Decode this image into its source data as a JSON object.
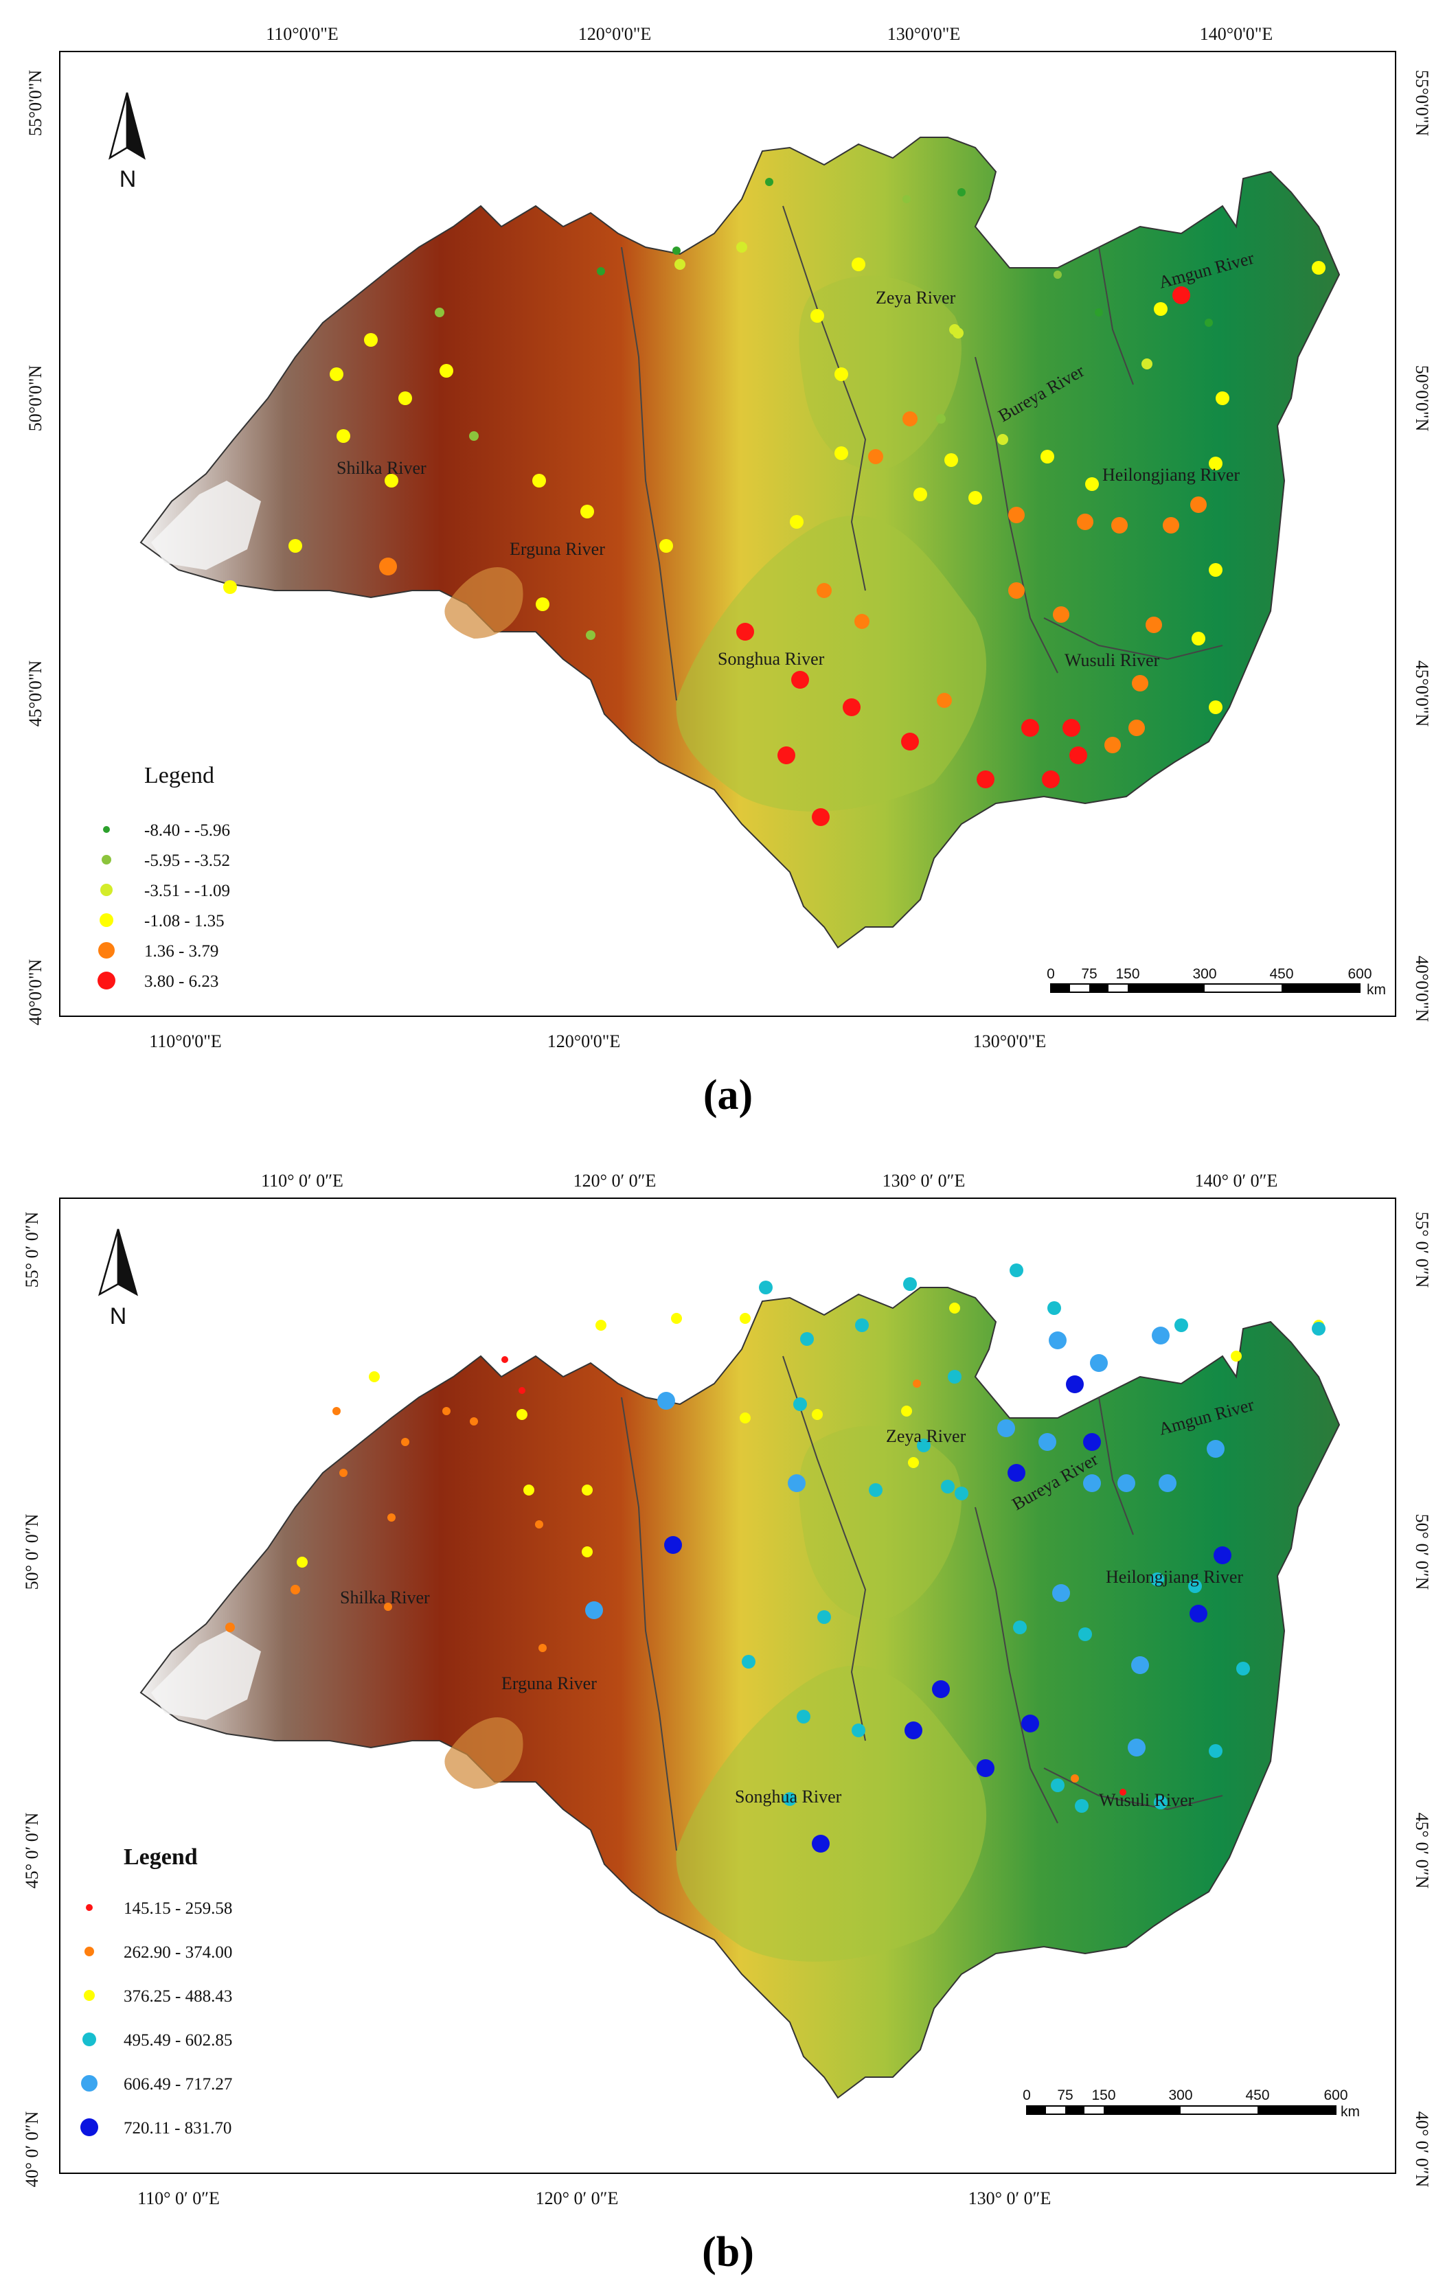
{
  "panels": [
    {
      "id": "a",
      "caption": "(a)",
      "top_ticks": [
        "110°0'0\"E",
        "120°0'0\"E",
        "130°0'0\"E",
        "140°0'0\"E"
      ],
      "bottom_ticks": [
        "110°0'0\"E",
        "120°0'0\"E",
        "130°0'0\"E"
      ],
      "left_ticks": [
        "55°0'0\"N",
        "50°0'0\"N",
        "45°0'0\"N",
        "40°0'0\"N"
      ],
      "right_ticks": [
        "55°0'0\"N",
        "50°0'0\"N",
        "45°0'0\"N",
        "40°0'0\"N"
      ],
      "north_label": "N",
      "rivers": [
        "Zeya River",
        "Amgun River",
        "Bureya River",
        "Shilka River",
        "Heilongjiang River",
        "Erguna River",
        "Songhua River",
        "Wusuli River"
      ],
      "legend": {
        "title": "Legend",
        "entries": [
          "-8.40 - -5.96",
          "-5.95 - -3.52",
          "-3.51 - -1.09",
          "-1.08 - 1.35",
          "1.36 - 3.79",
          "3.80 - 6.23"
        ],
        "colors": [
          "#2ca02c",
          "#8cc43c",
          "#d4ec2a",
          "#ffff00",
          "#ff7f0e",
          "#ff1414"
        ]
      },
      "scale": {
        "labels": [
          "0",
          "75",
          "150",
          "300",
          "450",
          "600"
        ],
        "unit": "km"
      }
    },
    {
      "id": "b",
      "caption": "(b)",
      "top_ticks": [
        "110° 0′ 0″E",
        "120° 0′ 0″E",
        "130° 0′ 0″E",
        "140° 0′ 0″E"
      ],
      "bottom_ticks": [
        "110° 0′ 0″E",
        "120° 0′ 0″E",
        "130° 0′ 0″E"
      ],
      "left_ticks": [
        "55° 0′ 0″N",
        "50° 0′ 0″N",
        "45° 0′ 0″N",
        "40° 0′ 0″N"
      ],
      "right_ticks": [
        "55° 0′ 0″N",
        "50° 0′ 0″N",
        "45° 0′ 0″N",
        "40° 0′ 0″N"
      ],
      "north_label": "N",
      "rivers": [
        "Zeya River",
        "Amgun River",
        "Bureya River",
        "Shilka River",
        "Heilongjiang River",
        "Erguna River",
        "Songhua River",
        "Wusuli River"
      ],
      "legend": {
        "title": "Legend",
        "entries": [
          "145.15 - 259.58",
          "262.90 - 374.00",
          "376.25 - 488.43",
          "495.49 - 602.85",
          "606.49 - 717.27",
          "720.11 - 831.70"
        ],
        "colors": [
          "#ff1414",
          "#ff7f0e",
          "#ffff00",
          "#17becf",
          "#3aa5f0",
          "#0a14e0"
        ]
      },
      "scale": {
        "labels": [
          "0",
          "75",
          "150",
          "300",
          "450",
          "600"
        ],
        "unit": "km"
      }
    }
  ]
}
